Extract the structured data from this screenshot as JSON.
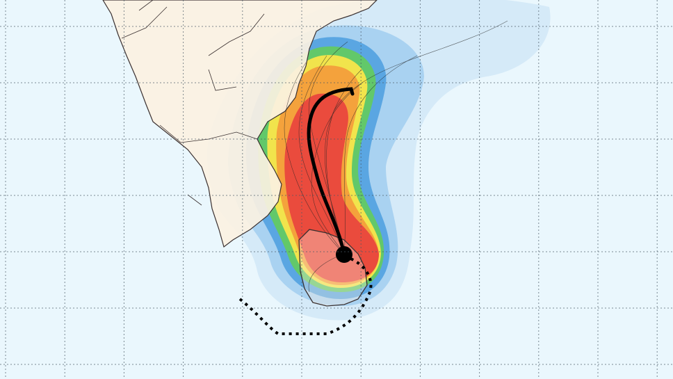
{
  "map": {
    "colors": {
      "ocean": "#eaf7fd",
      "land": "#fbf1e2",
      "coast": "#3a3030",
      "prob_lowest": "#cfe6f6",
      "prob_low": "#9ccbef",
      "prob_mid_low": "#4f9fe0",
      "prob_mid": "#5cc96a",
      "prob_mid_high": "#f2e24a",
      "prob_high": "#f5a23a",
      "prob_highest": "#ea4a3c",
      "mean_track": "#000000",
      "ensemble_tracks": "#222222"
    },
    "features": [
      "strike-probability-plume",
      "ensemble-tracks",
      "mean-track",
      "current-position-marker",
      "past-track-dotted"
    ]
  }
}
